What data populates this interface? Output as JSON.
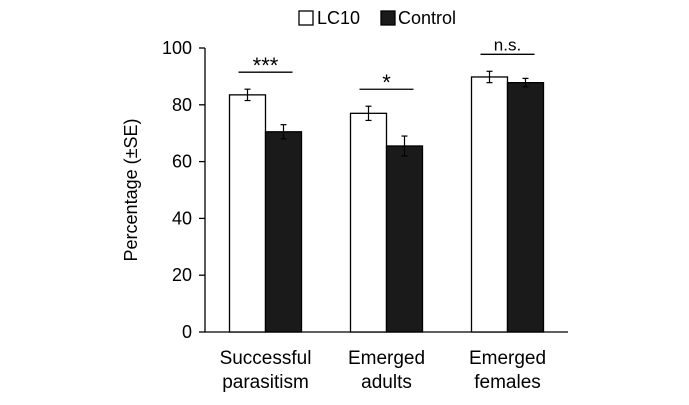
{
  "chart_data": {
    "type": "bar",
    "title": "",
    "xlabel": "",
    "ylabel": "Percentage (±SE)",
    "ylim": [
      0,
      100
    ],
    "yticks": [
      0,
      20,
      40,
      60,
      80,
      100
    ],
    "categories": [
      [
        "Successful",
        "parasitism"
      ],
      [
        "Emerged",
        "adults"
      ],
      [
        "Emerged",
        "females"
      ]
    ],
    "series": [
      {
        "name": "LC10",
        "values": [
          83.5,
          77.0,
          89.8
        ],
        "errors": [
          2.0,
          2.5,
          2.0
        ],
        "color": "#ffffff"
      },
      {
        "name": "Control",
        "values": [
          70.5,
          65.5,
          87.8
        ],
        "errors": [
          2.5,
          3.5,
          1.5
        ],
        "color": "#1a1a1a"
      }
    ],
    "significance": [
      "***",
      "*",
      "n.s."
    ],
    "legend_position": "top-center",
    "grid": false
  }
}
